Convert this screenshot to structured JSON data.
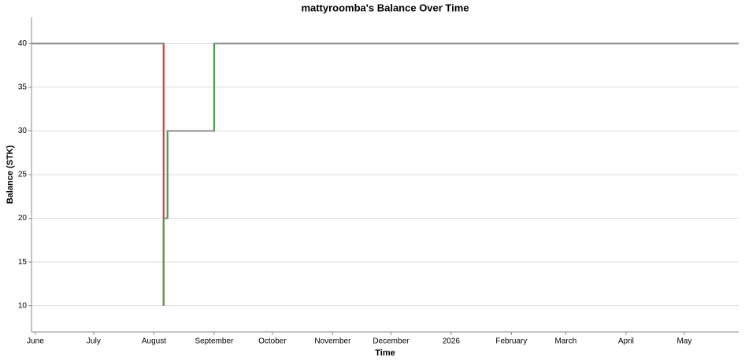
{
  "chart_data": {
    "type": "step-line",
    "title": "mattyroomba's Balance Over Time",
    "x_label": "Time",
    "y_label": "Balance (STK)",
    "x": [
      "2025-05-30",
      "2025-08-06",
      "2025-08-06",
      "2025-08-08",
      "2025-09-01",
      "2026-05-29"
    ],
    "values": [
      40,
      10,
      20,
      30,
      40,
      40
    ],
    "colors": {
      "flat": "#8c8c8c",
      "decrease": "#e53935",
      "increase": "#43a047"
    },
    "xlim": [
      "2025-05-30",
      "2026-05-29"
    ],
    "xticks": [
      {
        "value": "2025-06-01",
        "label": "June"
      },
      {
        "value": "2025-07-01",
        "label": "July"
      },
      {
        "value": "2025-08-01",
        "label": "August"
      },
      {
        "value": "2025-09-01",
        "label": "September"
      },
      {
        "value": "2025-10-01",
        "label": "October"
      },
      {
        "value": "2025-11-01",
        "label": "November"
      },
      {
        "value": "2025-12-01",
        "label": "December"
      },
      {
        "value": "2026-01-01",
        "label": "2026"
      },
      {
        "value": "2026-02-01",
        "label": "February"
      },
      {
        "value": "2026-03-01",
        "label": "March"
      },
      {
        "value": "2026-04-01",
        "label": "April"
      },
      {
        "value": "2026-05-01",
        "label": "May"
      }
    ],
    "ylim": [
      7,
      43
    ],
    "yticks": [
      10,
      15,
      20,
      25,
      30,
      35,
      40
    ],
    "grid": true
  }
}
